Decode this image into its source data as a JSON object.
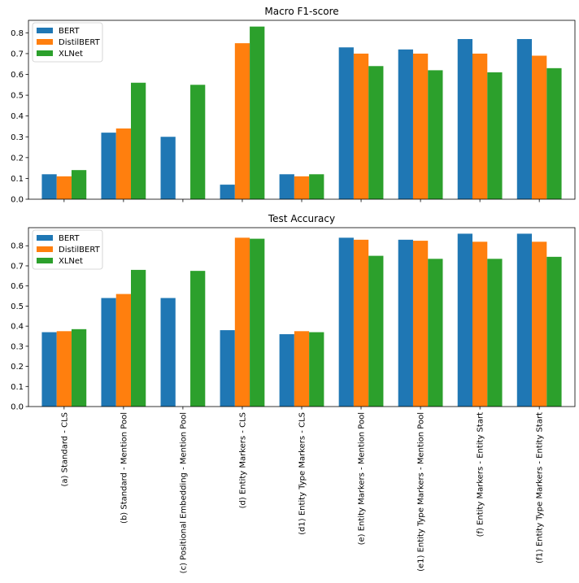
{
  "chart_data": [
    {
      "type": "bar",
      "title": "Macro F1-score",
      "ylim": [
        0,
        0.86
      ],
      "yticks": [
        "0.0",
        "0.1",
        "0.2",
        "0.3",
        "0.4",
        "0.5",
        "0.6",
        "0.7",
        "0.8"
      ],
      "legend": "top-left",
      "categories": [
        "(a) Standard - CLS",
        "(b) Standard - Mention Pool",
        "(c) Positional Embedding - Mention Pool",
        "(d) Entity Markers - CLS",
        "(d1) Entity Type Markers - CLS",
        "(e) Entity Markers - Mention Pool",
        "(e1) Entity Type Markers - Mention Pool",
        "(f) Entity Markers - Entity Start",
        "(f1) Entity Type Markers - Entity Start"
      ],
      "series": [
        {
          "name": "BERT",
          "color": "#1f77b4",
          "values": [
            0.12,
            0.32,
            0.3,
            0.07,
            0.12,
            0.73,
            0.72,
            0.77,
            0.77
          ]
        },
        {
          "name": "DistilBERT",
          "color": "#ff7f0e",
          "values": [
            0.11,
            0.34,
            null,
            0.75,
            0.11,
            0.7,
            0.7,
            0.7,
            0.69
          ]
        },
        {
          "name": "XLNet",
          "color": "#2ca02c",
          "values": [
            0.14,
            0.56,
            0.55,
            0.83,
            0.12,
            0.64,
            0.62,
            0.61,
            0.63
          ]
        }
      ]
    },
    {
      "type": "bar",
      "title": "Test Accuracy",
      "ylim": [
        0,
        0.89
      ],
      "yticks": [
        "0.0",
        "0.1",
        "0.2",
        "0.3",
        "0.4",
        "0.5",
        "0.6",
        "0.7",
        "0.8"
      ],
      "legend": "top-left",
      "categories": [
        "(a) Standard - CLS",
        "(b) Standard - Mention Pool",
        "(c) Positional Embedding - Mention Pool",
        "(d) Entity Markers - CLS",
        "(d1) Entity Type Markers - CLS",
        "(e) Entity Markers - Mention Pool",
        "(e1) Entity Type Markers - Mention Pool",
        "(f) Entity Markers - Entity Start",
        "(f1) Entity Type Markers - Entity Start"
      ],
      "series": [
        {
          "name": "BERT",
          "color": "#1f77b4",
          "values": [
            0.37,
            0.54,
            0.54,
            0.38,
            0.36,
            0.84,
            0.83,
            0.86,
            0.86
          ]
        },
        {
          "name": "DistilBERT",
          "color": "#ff7f0e",
          "values": [
            0.375,
            0.56,
            null,
            0.84,
            0.375,
            0.83,
            0.825,
            0.82,
            0.82
          ]
        },
        {
          "name": "XLNet",
          "color": "#2ca02c",
          "values": [
            0.385,
            0.68,
            0.675,
            0.835,
            0.37,
            0.75,
            0.735,
            0.735,
            0.745
          ]
        }
      ]
    }
  ]
}
